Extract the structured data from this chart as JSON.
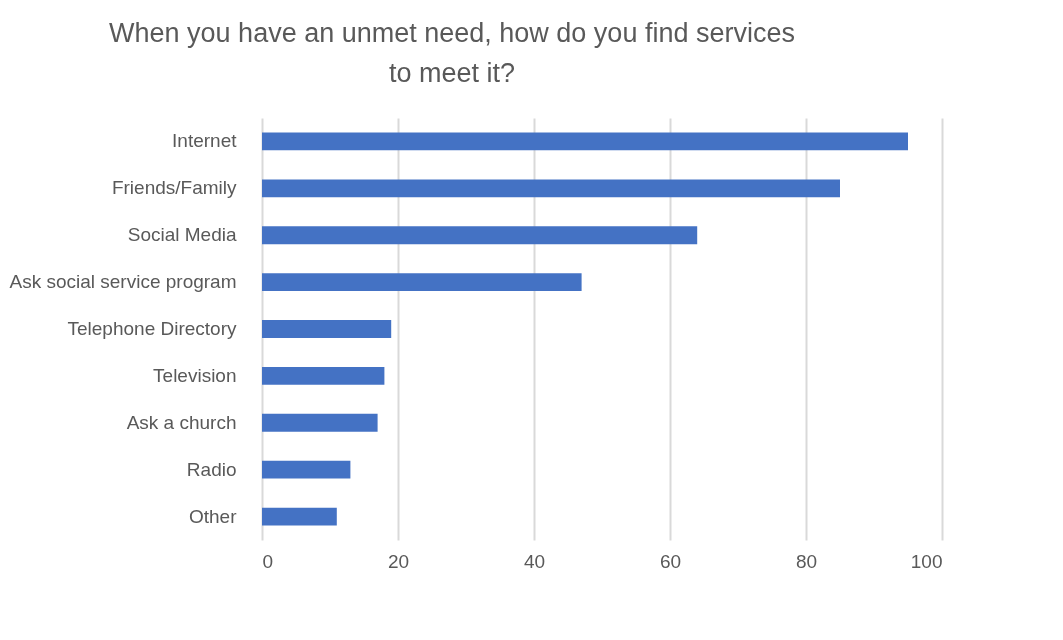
{
  "chart_data": {
    "type": "bar",
    "orientation": "horizontal",
    "title": "When you have an unmet need, how do you find services to meet it?",
    "categories": [
      "Internet",
      "Friends/Family",
      "Social Media",
      "Ask social service program",
      "Telephone Directory",
      "Television",
      "Ask a church",
      "Radio",
      "Other"
    ],
    "values": [
      95,
      85,
      64,
      47,
      19,
      18,
      17,
      13,
      11
    ],
    "color": "#4472c4",
    "xlim": [
      0,
      100
    ],
    "xticks": [
      0,
      20,
      40,
      60,
      80,
      100
    ],
    "grid": "x"
  }
}
